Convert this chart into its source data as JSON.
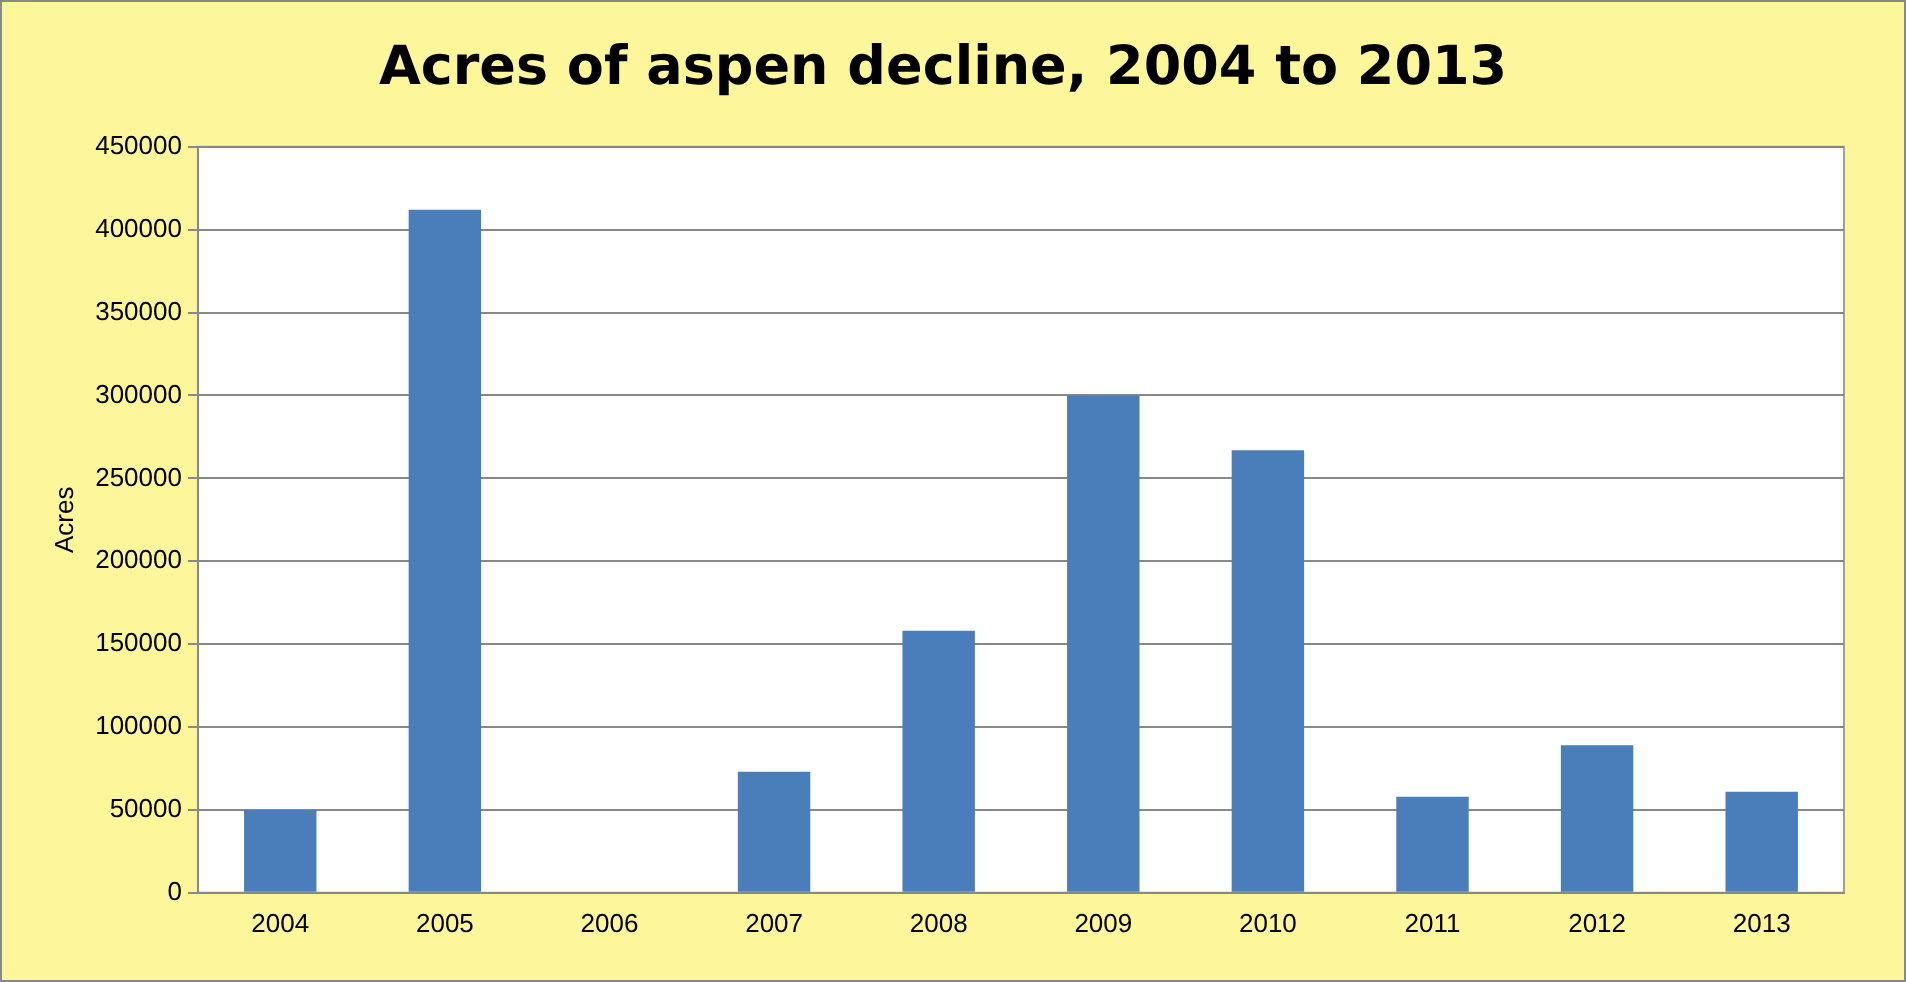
{
  "chart_data": {
    "type": "bar",
    "title": "Acres of aspen decline, 2004 to 2013",
    "ylabel": "Acres",
    "categories": [
      "2004",
      "2005",
      "2006",
      "2007",
      "2008",
      "2009",
      "2010",
      "2011",
      "2012",
      "2013"
    ],
    "values": [
      50000,
      412000,
      0,
      73000,
      158000,
      300000,
      267000,
      58000,
      89000,
      61000
    ],
    "color": "#4a7ebb",
    "ylim": [
      0,
      450000
    ],
    "yticks": [
      0,
      50000,
      100000,
      150000,
      200000,
      250000,
      300000,
      350000,
      400000,
      450000
    ],
    "grid": "y",
    "legend": false
  }
}
